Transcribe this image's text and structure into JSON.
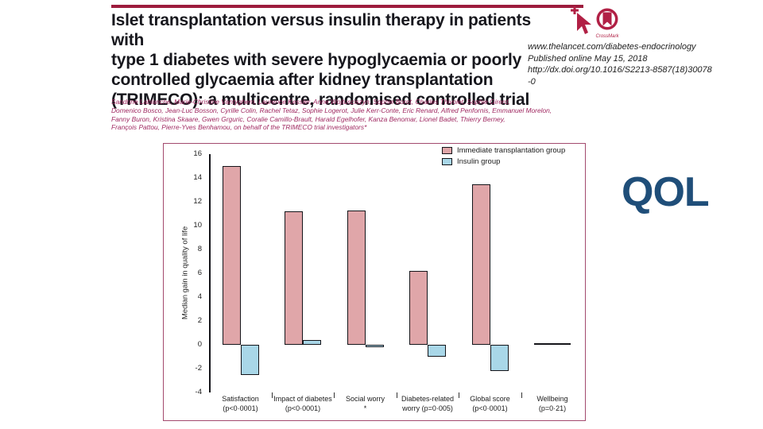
{
  "slide": {
    "title": "Islet transplantation versus insulin therapy in patients with\ntype 1 diabetes with severe hypoglycaemia or poorly\ncontrolled glycaemia after kidney transplantation\n(TRIMECO): a multicentre, randomised controlled trial",
    "citation": "www.thelancet.com/diabetes-endocrinology\nPublished online May 15, 2018\nhttp://dx.doi.org/10.1016/S2213-8587(18)30078\n-0",
    "authors": "Sandrine Lablanche, Marie-Christine Vantyghem, Laurence Kessler, Anne Wojtusciszyn, Sophie Borot, Charles Thivolet, Sophie Girerd,\nDomenico Bosco, Jean-Luc Bosson, Cyrille Colin, Rachel Tetaz, Sophie Logerot, Julie Kerr-Conte, Eric Renard, Alfred Penfornis, Emmanuel Morelon,\nFanny Buron, Kristina Skaare, Gwen Grguric, Coralie Camillo-Brault, Harald Egelhofer, Kanza Benomar, Lionel Badet, Thierry Berney,\nFrançois Pattou, Pierre-Yves Benhamou, on behalf of the TRIMECO trial investigators*",
    "qol_label": "QOL",
    "crossmark_caption": "CrossMark",
    "accent_crimson": "#9d1c3d",
    "logo_crimson": "#b12045",
    "author_text_color": "#a02a62",
    "qol_text_color": "#1f4e79"
  },
  "chart_data": {
    "type": "bar",
    "title": "",
    "xlabel": "",
    "ylabel": "Median gain in quality of life",
    "ylim": [
      -4,
      16
    ],
    "ytick_step": 2,
    "grid": false,
    "legend_position": "top-right",
    "categories": [
      {
        "label": "Satisfaction",
        "note": "(p<0·0001)"
      },
      {
        "label": "Impact of diabetes",
        "note": "(p<0·0001)"
      },
      {
        "label": "Social worry",
        "note": "*"
      },
      {
        "label": "Diabetes-related",
        "note": "worry (p=0·005)"
      },
      {
        "label": "Global score",
        "note": "(p<0·0001)"
      },
      {
        "label": "Wellbeing",
        "note": "(p=0·21)"
      }
    ],
    "series": [
      {
        "name": "Immediate transplantation group",
        "color": "#e0a6a9",
        "values": [
          15.0,
          11.2,
          11.3,
          6.2,
          13.5,
          0.1
        ]
      },
      {
        "name": "Insulin group",
        "color": "#a9d7e8",
        "values": [
          -2.5,
          0.4,
          -0.2,
          -1.0,
          -2.2,
          0.0
        ]
      }
    ],
    "bar_outline_color": "#15151a"
  }
}
